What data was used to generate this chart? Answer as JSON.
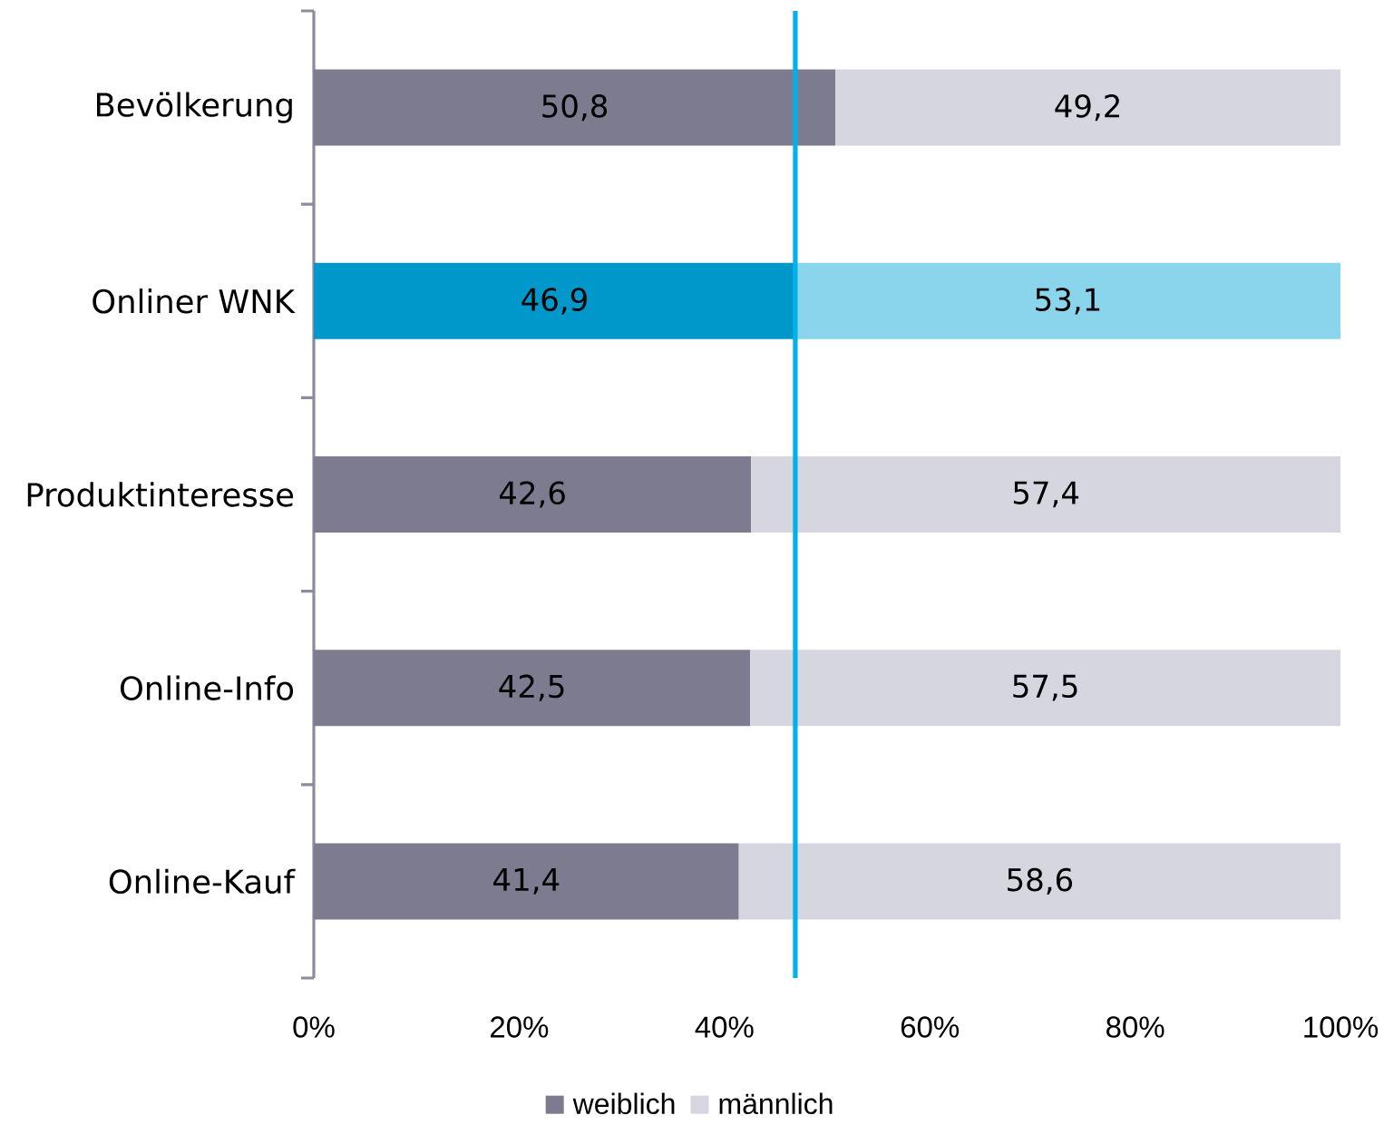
{
  "chart_data": {
    "type": "bar",
    "orientation": "horizontal",
    "stacked": true,
    "categories": [
      "Bevölkerung",
      "Onliner WNK",
      "Produktinteresse",
      "Online-Info",
      "Online-Kauf"
    ],
    "series": [
      {
        "name": "weiblich",
        "color": "#7c7b90",
        "colors": [
          "#7c7b90",
          "#0098ca",
          "#7c7b90",
          "#7c7b90",
          "#7c7b90"
        ],
        "values": [
          50.8,
          46.9,
          42.6,
          42.5,
          41.4
        ],
        "value_labels": [
          "50,8",
          "46,9",
          "42,6",
          "42,5",
          "41,4"
        ]
      },
      {
        "name": "männlich",
        "color": "#d6d6e0",
        "colors": [
          "#d6d6e0",
          "#8bd5ec",
          "#d6d6e0",
          "#d6d6e0",
          "#d6d6e0"
        ],
        "values": [
          49.2,
          53.1,
          57.4,
          57.5,
          58.6
        ],
        "value_labels": [
          "49,2",
          "53,1",
          "57,4",
          "57,5",
          "58,6"
        ]
      }
    ],
    "xlim": [
      0,
      100
    ],
    "xticks": [
      {
        "value": 0,
        "label": "0%"
      },
      {
        "value": 20,
        "label": "20%"
      },
      {
        "value": 40,
        "label": "40%"
      },
      {
        "value": 60,
        "label": "60%"
      },
      {
        "value": 80,
        "label": "80%"
      },
      {
        "value": 100,
        "label": "100%"
      }
    ],
    "ref_lines": [
      {
        "axis": "x",
        "value": 46.9,
        "color": "#00b2e9"
      }
    ],
    "legend": "bottom"
  }
}
